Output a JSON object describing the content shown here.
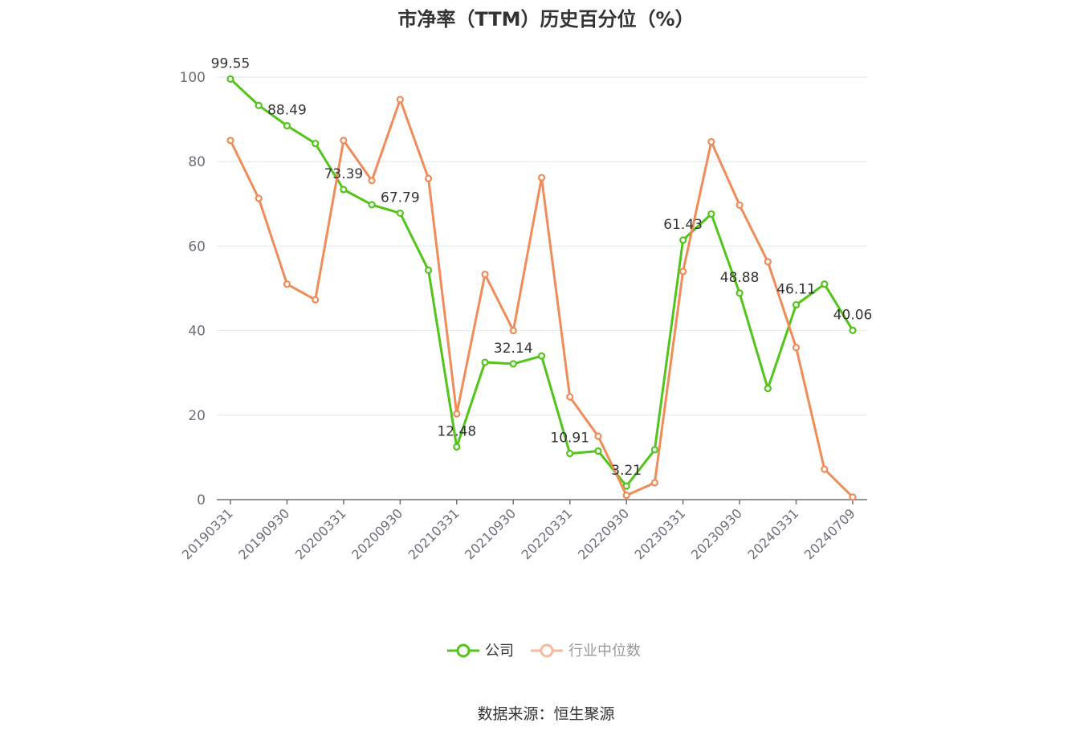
{
  "chart_data": {
    "type": "line",
    "title": "市净率（TTM）历史百分位（%）",
    "xlabel": "",
    "ylabel": "",
    "ylim": [
      0,
      100
    ],
    "yticks": [
      0,
      20,
      40,
      60,
      80,
      100
    ],
    "grid": true,
    "legend_position": "bottom",
    "x": [
      "20190331",
      "20190630",
      "20190930",
      "20191231",
      "20200331",
      "20200630",
      "20200930",
      "20201231",
      "20210331",
      "20210630",
      "20210930",
      "20211231",
      "20220331",
      "20220630",
      "20220930",
      "20221231",
      "20230331",
      "20230630",
      "20230930",
      "20231231",
      "20240331",
      "20240630",
      "20240709"
    ],
    "x_tick_labels": [
      "20190331",
      "20190930",
      "20200331",
      "20200930",
      "20210331",
      "20210930",
      "20220331",
      "20220930",
      "20230331",
      "20230930",
      "20240331",
      "20240709"
    ],
    "series": [
      {
        "name": "公司",
        "color": "#52c41a",
        "values": [
          99.55,
          93.3,
          88.49,
          84.3,
          73.39,
          69.8,
          67.79,
          54.3,
          12.48,
          32.5,
          32.14,
          34.0,
          10.91,
          11.5,
          3.21,
          11.8,
          61.43,
          67.6,
          48.88,
          26.3,
          46.11,
          51.0,
          40.06
        ],
        "labels": {
          "0": "99.55",
          "2": "88.49",
          "4": "73.39",
          "6": "67.79",
          "8": "12.48",
          "10": "32.14",
          "12": "10.91",
          "14": "3.21",
          "16": "61.43",
          "18": "48.88",
          "20": "46.11",
          "22": "40.06"
        }
      },
      {
        "name": "行业中位数",
        "color": "#f08c5a",
        "values": [
          85.0,
          71.3,
          51.0,
          47.3,
          85.0,
          75.5,
          94.7,
          76.0,
          20.3,
          53.3,
          40.0,
          76.2,
          24.3,
          15.0,
          1.0,
          4.0,
          54.0,
          84.7,
          69.7,
          56.3,
          36.0,
          7.2,
          0.6
        ]
      }
    ]
  },
  "source": "数据来源：恒生聚源"
}
